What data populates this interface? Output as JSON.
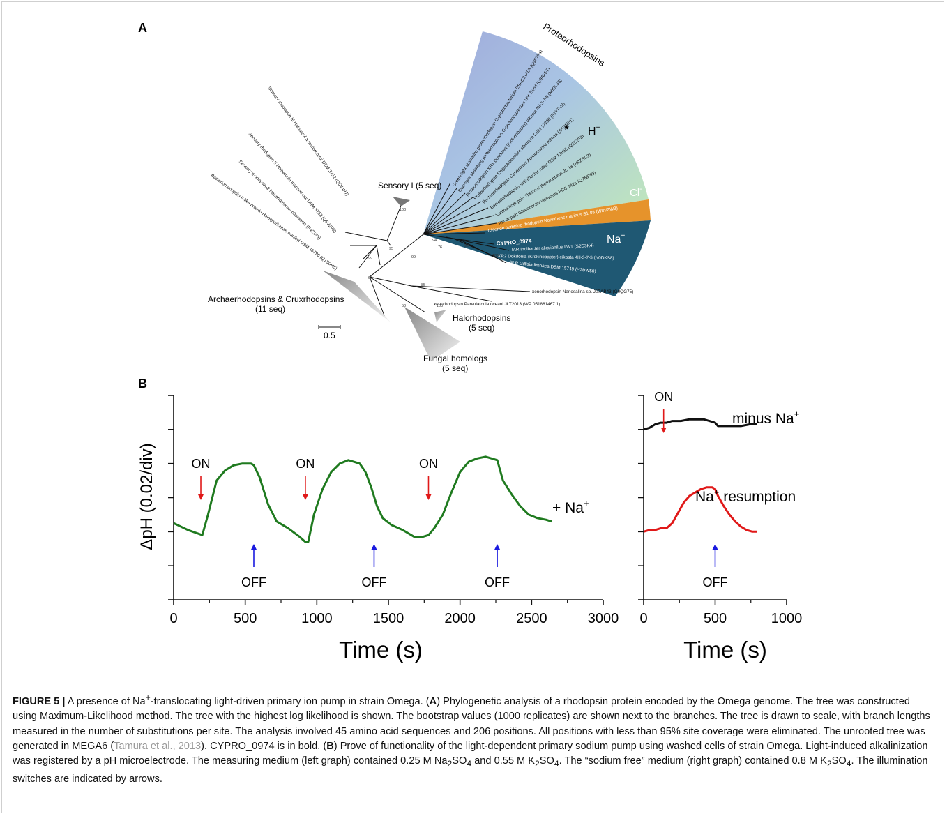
{
  "figure": {
    "panel_a_label": "A",
    "panel_b_label": "B"
  },
  "tree": {
    "wedge_labels": {
      "proteo": "Proteorhodopsins",
      "h": "H",
      "h_sup": "+",
      "cl": "Cl",
      "cl_sup": "-",
      "na": "Na",
      "na_sup": "+"
    },
    "collapsed": {
      "sensory1": "Sensory I (5 seq)",
      "archae_line1": "Archaerhodopsins & Cruxrhodopsins",
      "archae_line2": "(11 seq)",
      "halo_line1": "Halorhodopsins",
      "halo_line2": "(5 seq)",
      "fungal_line1": "Fungal homologs",
      "fungal_line2": "(5 seq)"
    },
    "scale": "0.5",
    "leaves_left": [
      "Sensory rhodopsin III Haloarcul a marismortui DSM 3752 (Q5V4H7)",
      "Sensory rhodopsin II Haloarcula marismortui DSM 3752 (Q5V2V3)",
      "Sensory rhodopsin-2 Natronomonas pharaonis (P42196)",
      "Bacteriorhodopsin-II-like protein Haloquadratum walsbyi DSM 16790 (Q18DH5)"
    ],
    "leaves_proteo": [
      "Green-light absorbing proteorhodopsin G-proteobacterium EBAC31A08 (Q9F7P4)",
      "Blue-light absorbing proteorhodopsin G-proteobacterium Hot 75m4 (Q9AFF7)",
      "Proteorhodopsin KR1 Dokdonia (Krokinobacter) eikasta 4H-3-7-5 (N0DLS5)",
      "Proteorhodopsin Exiguobacterium sibiricum DSM 17290 (B1YFV8)",
      "Bacteriorhodopsin Candidatus Actinomarina minuta (S5DM51)",
      "Bacteriorhodopsin Salinibacter ruber DSM 13855 (Q2S2F8)",
      "Xanthorhodopsin Thermus thermophilus JL-18 (H9ZSC3)",
      "Rhodopsin Gloeobacter violaceus PCC 7421 (Q7NP59)"
    ],
    "leaf_cl": "Chloride pumping rhodopsin Nonlabens marinus S1-08 (W8VZW3)",
    "leaves_na": [
      "CYPRO_0974",
      "IAR Indibacter alkaliphilus LW1 (S2D3K4)",
      "KR2 Dokdonia (Krokinobacter) eikasta 4H-3-7-5 (N0DKS8)",
      "GLR Gillisia limnaea DSM 15749 (H2BW50)"
    ],
    "leaves_xeno": [
      "xenorhodopsin Nanosalina sp. J07AB43 (G0QG75)",
      "xenorhodopsin Parvularcula oceani JLT2013 (WP 051881467.1)"
    ],
    "bootstrap": [
      "100",
      "95",
      "99",
      "99",
      "99",
      "85",
      "50",
      "100",
      "94",
      "76",
      "99",
      "100"
    ],
    "star": "★"
  },
  "plots": {
    "ylabel": "ΔpH (0.02/div)",
    "xlabel_left": "Time (s)",
    "xlabel_right": "Time (s)",
    "left_ticks": [
      "0",
      "500",
      "1000",
      "1500",
      "2000",
      "2500",
      "3000"
    ],
    "right_ticks": [
      "0",
      "500",
      "1000"
    ],
    "on_label": "ON",
    "off_label": "OFF",
    "plus_na_prefix": "+ Na",
    "plus_na_sup": "+",
    "minus_na_prefix": "minus Na",
    "minus_na_sup": "+",
    "resumption_prefix": "Na",
    "resumption_sup": "+",
    "resumption_suffix": " resumption"
  },
  "colors": {
    "plus_na": "#1f7a1f",
    "minus_na": "#111111",
    "resumption": "#e01818",
    "on_arrow": "#e01818",
    "off_arrow": "#1a1adf",
    "proteo_wedge": "#a5b4df",
    "h_wedge": "#b9e4c8",
    "cl_wedge": "#e6932b",
    "na_wedge": "#1f5873"
  },
  "chart_data": [
    {
      "type": "line",
      "title": "",
      "xlabel": "Time (s)",
      "ylabel": "ΔpH (0.02/div)",
      "xlim": [
        0,
        3000
      ],
      "ylim": [
        -0.04,
        0.08
      ],
      "series": [
        {
          "name": "+ Na+",
          "x": [
            0,
            100,
            200,
            240,
            300,
            360,
            420,
            480,
            540,
            560,
            600,
            660,
            720,
            800,
            880,
            920,
            940,
            980,
            1040,
            1100,
            1160,
            1220,
            1260,
            1300,
            1340,
            1380,
            1420,
            1460,
            1520,
            1600,
            1680,
            1740,
            1780,
            1820,
            1880,
            1940,
            2000,
            2060,
            2120,
            2180,
            2220,
            2260,
            2300,
            2360,
            2420,
            2480,
            2540,
            2600,
            2640
          ],
          "y": [
            0.005,
            0.001,
            -0.002,
            0.01,
            0.03,
            0.036,
            0.039,
            0.04,
            0.04,
            0.039,
            0.032,
            0.016,
            0.006,
            0.002,
            -0.003,
            -0.006,
            -0.006,
            0.01,
            0.025,
            0.035,
            0.04,
            0.042,
            0.041,
            0.04,
            0.035,
            0.026,
            0.015,
            0.008,
            0.004,
            0.001,
            -0.003,
            -0.003,
            -0.002,
            0.002,
            0.01,
            0.023,
            0.035,
            0.041,
            0.043,
            0.044,
            0.043,
            0.042,
            0.03,
            0.022,
            0.015,
            0.01,
            0.008,
            0.007,
            0.006
          ]
        }
      ],
      "annotations": [
        {
          "label": "ON",
          "x": 190
        },
        {
          "label": "OFF",
          "x": 560
        },
        {
          "label": "ON",
          "x": 920
        },
        {
          "label": "OFF",
          "x": 1400
        },
        {
          "label": "ON",
          "x": 1780
        },
        {
          "label": "OFF",
          "x": 2260
        }
      ]
    },
    {
      "type": "line",
      "title": "",
      "xlabel": "Time (s)",
      "ylabel": "ΔpH (0.02/div)",
      "xlim": [
        0,
        1000
      ],
      "ylim": [
        -0.04,
        0.08
      ],
      "series": [
        {
          "name": "minus Na+",
          "x": [
            0,
            40,
            80,
            120,
            160,
            200,
            260,
            320,
            380,
            420,
            460,
            500,
            520,
            560,
            620,
            680,
            740,
            790
          ],
          "y": [
            0.06,
            0.061,
            0.063,
            0.064,
            0.064,
            0.065,
            0.065,
            0.066,
            0.066,
            0.066,
            0.065,
            0.064,
            0.062,
            0.062,
            0.062,
            0.062,
            0.063,
            0.063
          ]
        },
        {
          "name": "Na+ resumption",
          "x": [
            0,
            40,
            80,
            120,
            160,
            200,
            240,
            280,
            320,
            360,
            400,
            440,
            480,
            500,
            520,
            560,
            600,
            640,
            680,
            720,
            760,
            790
          ],
          "y": [
            0.0,
            0.001,
            0.001,
            0.002,
            0.002,
            0.005,
            0.011,
            0.017,
            0.021,
            0.023,
            0.025,
            0.026,
            0.026,
            0.025,
            0.021,
            0.015,
            0.01,
            0.006,
            0.003,
            0.001,
            0.0,
            0.0
          ]
        }
      ],
      "annotations": [
        {
          "label": "ON",
          "x": 140
        },
        {
          "label": "OFF",
          "x": 500
        }
      ]
    }
  ],
  "caption": {
    "figure_label": "FIGURE 5 |",
    "t1": " A presence of Na",
    "t1_sup": "+",
    "t2": "-translocating light-driven primary ion pump in strain Omega. (",
    "a": "A",
    "t3": ") Phylogenetic analysis of a rhodopsin protein encoded by the Omega genome. The tree was constructed using Maximum-Likelihood method. The tree with the highest log likelihood is shown. The bootstrap values (1000 replicates) are shown next to the branches. The tree is drawn to scale, with branch lengths measured in the number of substitutions per site. The analysis involved 45 amino acid sequences and 206 positions. All positions with less than 95% site coverage were eliminated. The unrooted tree was generated in MEGA6 (",
    "cite": "Tamura et al., 2013",
    "t4": "). CYPRO_0974 is in bold. (",
    "b": "B",
    "t5": ") Prove of functionality of the light-dependent primary sodium pump using washed cells of strain Omega. Light-induced alkalinization was registered by a pH microelectrode. The measuring medium (left graph) contained 0.25 M Na",
    "t5_sub": "2",
    "t6": "SO",
    "t6_sub": "4",
    "t7": " and 0.55 M K",
    "t7_sub": "2",
    "t8": "SO",
    "t8_sub": "4",
    "t9": ". The “sodium free” medium (right graph) contained 0.8 M K",
    "t9_sub": "2",
    "t10": "SO",
    "t10_sub": "4",
    "t11": ". The illumination switches are indicated by arrows."
  }
}
